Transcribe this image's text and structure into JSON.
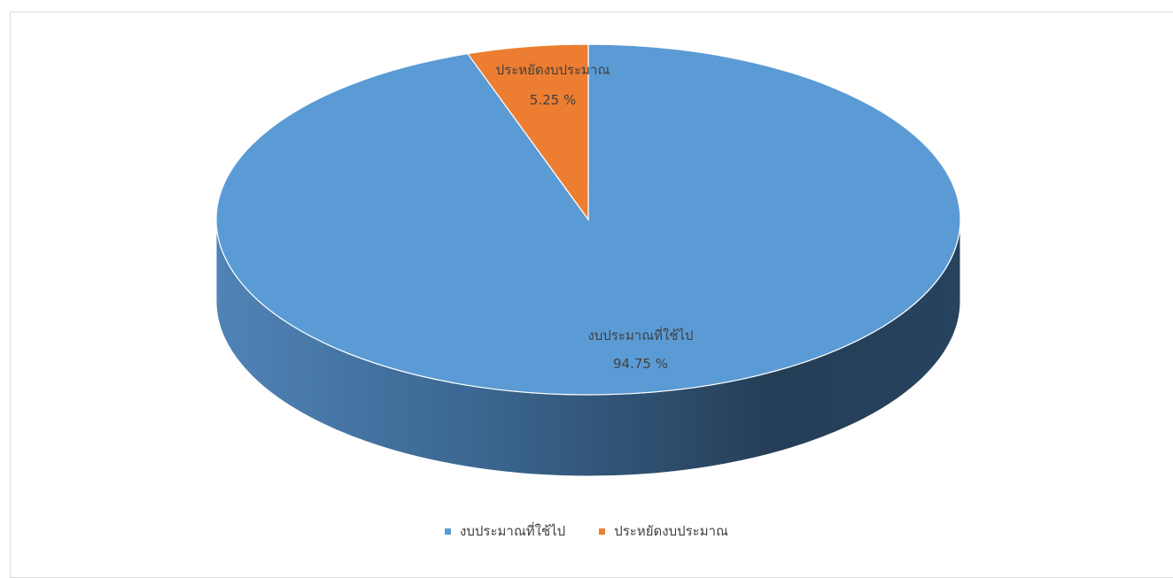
{
  "chart_data": {
    "type": "pie",
    "title": "",
    "categories": [
      "งบประมาณที่ใช้ไป",
      "ประหยัดงบประมาณ"
    ],
    "values": [
      94.75,
      5.25
    ],
    "unit": "%",
    "colors": [
      "#5b9bd5",
      "#ed7d31"
    ],
    "data_labels": [
      {
        "category": "งบประมาณที่ใช้ไป",
        "value": "94.75 %"
      },
      {
        "category": "ประหยัดงบประมาณ",
        "value": "5.25 %"
      }
    ],
    "legend": {
      "position": "bottom",
      "entries": [
        "งบประมาณที่ใช้ไป",
        "ประหยัดงบประมาณ"
      ]
    },
    "style": "3d"
  }
}
